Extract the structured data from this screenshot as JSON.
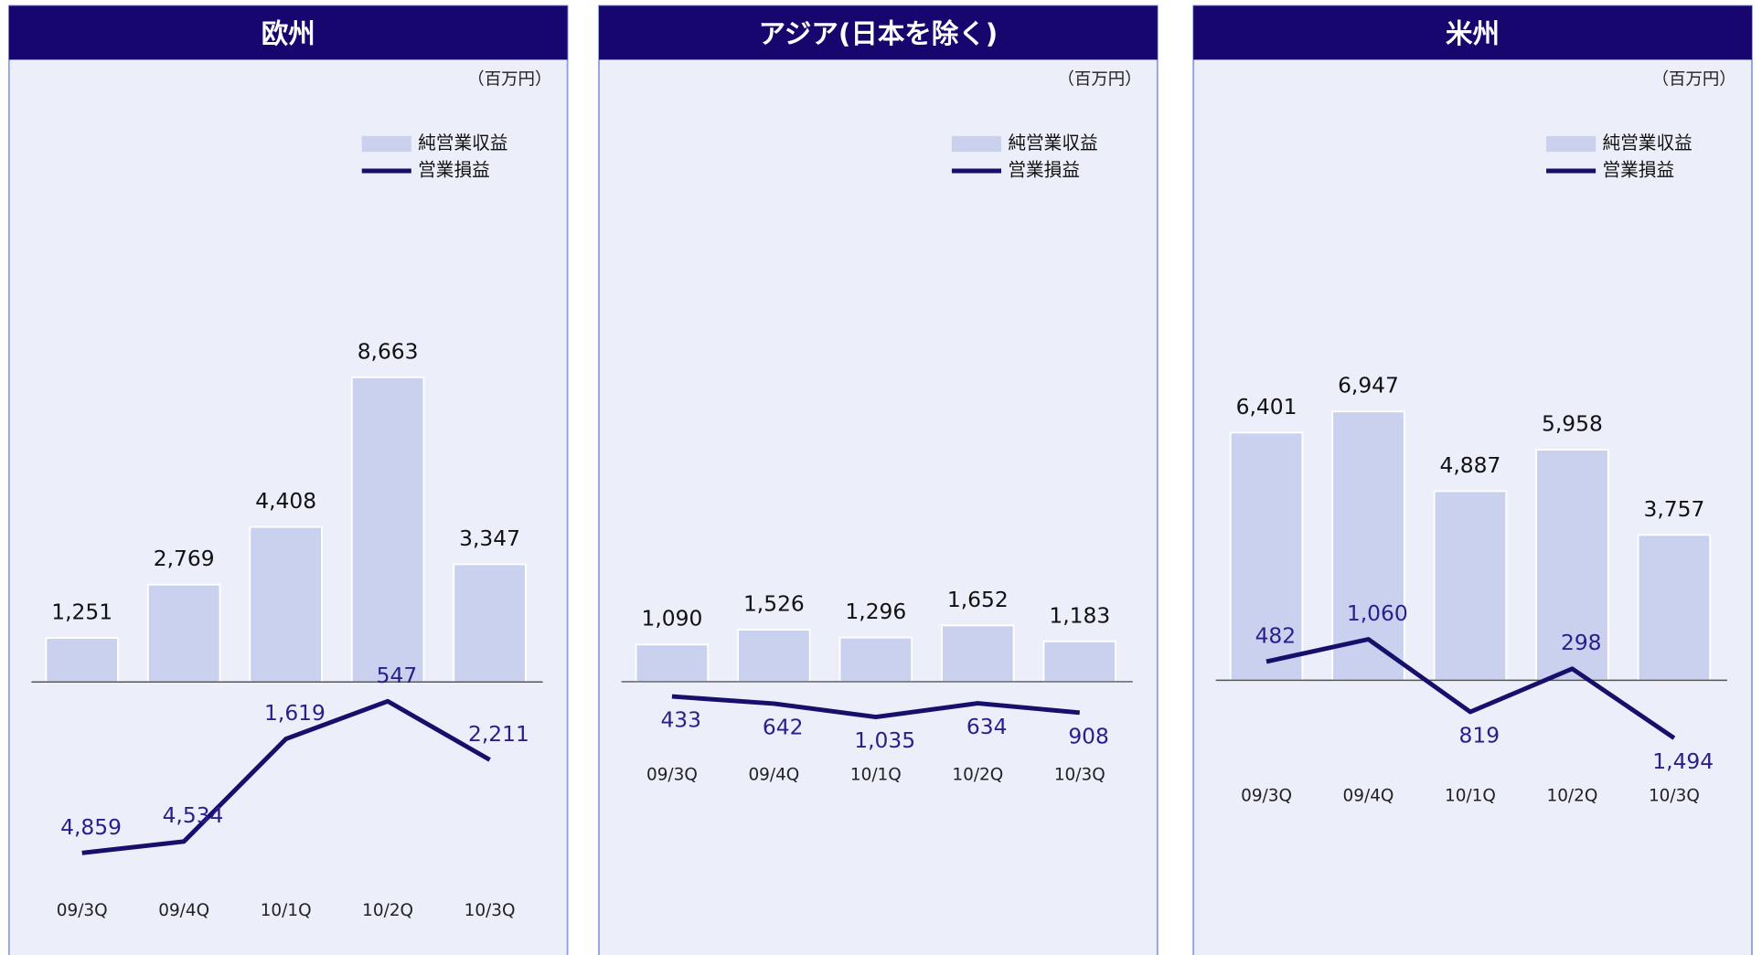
{
  "chart_data": [
    {
      "type": "bar",
      "title": "欧州",
      "unit": "（百万円）",
      "categories": [
        "09/3Q",
        "09/4Q",
        "10/1Q",
        "10/2Q",
        "10/3Q"
      ],
      "series": [
        {
          "name": "純営業収益",
          "type": "bar",
          "color": "#c9d1ef",
          "values": [
            1251,
            2769,
            4408,
            8663,
            3347
          ],
          "value_labels": [
            "1,251",
            "2,769",
            "4,408",
            "8,663",
            "3,347"
          ]
        },
        {
          "name": "営業損益",
          "type": "line",
          "color": "#160f6b",
          "values": [
            -4859,
            -4534,
            -1619,
            -547,
            -2211
          ],
          "value_labels": [
            "4,859",
            "4,534",
            "1,619",
            "547",
            "2,211"
          ]
        }
      ],
      "ylim": [
        -6000,
        16000
      ]
    },
    {
      "type": "bar",
      "title": "アジア(日本を除く)",
      "unit": "（百万円）",
      "categories": [
        "09/3Q",
        "09/4Q",
        "10/1Q",
        "10/2Q",
        "10/3Q"
      ],
      "series": [
        {
          "name": "純営業収益",
          "type": "bar",
          "color": "#c9d1ef",
          "values": [
            1090,
            1526,
            1296,
            1652,
            1183
          ],
          "value_labels": [
            "1,090",
            "1,526",
            "1,296",
            "1,652",
            "1,183"
          ]
        },
        {
          "name": "営業損益",
          "type": "line",
          "color": "#160f6b",
          "values": [
            -433,
            -642,
            -1035,
            -634,
            -908
          ],
          "value_labels": [
            "433",
            "642",
            "1,035",
            "634",
            "908"
          ]
        }
      ],
      "ylim": [
        -6200,
        16500
      ]
    },
    {
      "type": "bar",
      "title": "米州",
      "unit": "（百万円）",
      "categories": [
        "09/3Q",
        "09/4Q",
        "10/1Q",
        "10/2Q",
        "10/3Q"
      ],
      "series": [
        {
          "name": "純営業収益",
          "type": "bar",
          "color": "#c9d1ef",
          "values": [
            6401,
            6947,
            4887,
            5958,
            3757
          ],
          "value_labels": [
            "6,401",
            "6,947",
            "4,887",
            "5,958",
            "3,757"
          ]
        },
        {
          "name": "営業損益",
          "type": "line",
          "color": "#160f6b",
          "values": [
            482,
            1060,
            -819,
            298,
            -1494
          ],
          "value_labels": [
            "482",
            "1,060",
            "819",
            "298",
            "1,494"
          ]
        }
      ],
      "ylim": [
        -5500,
        14500
      ]
    }
  ]
}
